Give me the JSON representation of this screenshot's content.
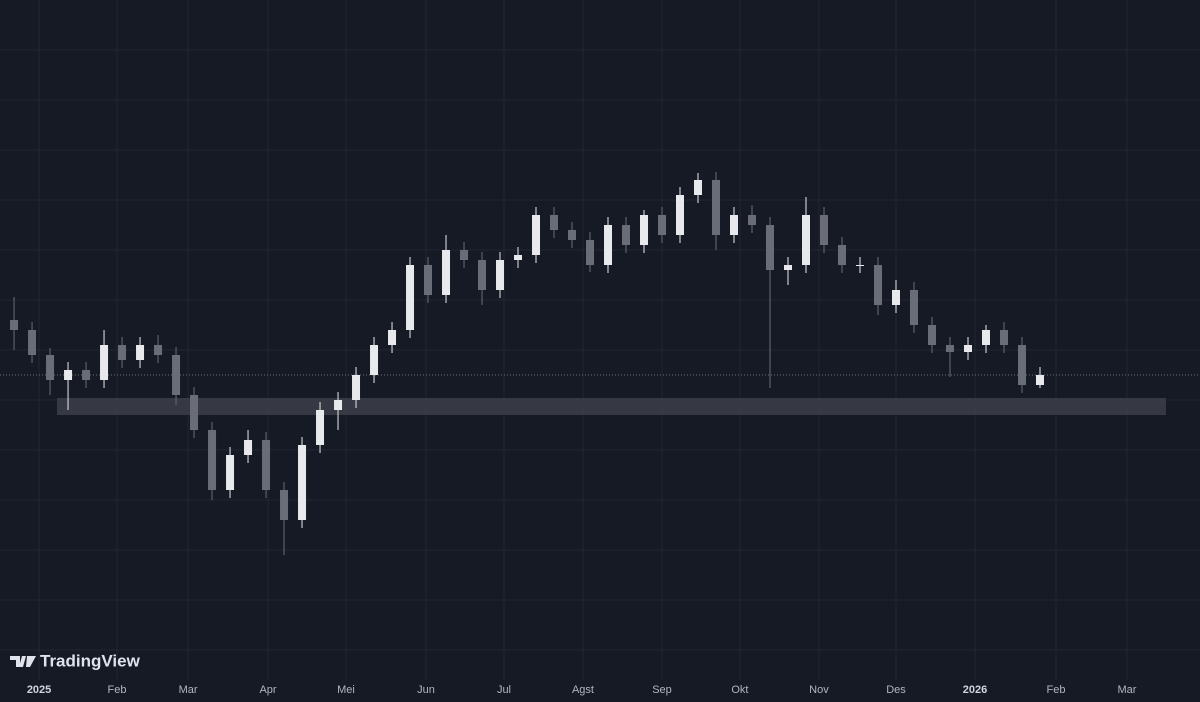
{
  "chart_data": {
    "type": "candlestick",
    "watermark": "TradingView",
    "up_color": "#e8e9ec",
    "down_color": "#6a6d78",
    "zone_color": "#3a3d47",
    "categories": [
      null,
      null,
      null,
      null,
      null,
      null,
      null,
      null,
      null,
      null,
      null,
      null,
      null,
      null,
      null,
      null,
      null,
      null,
      null,
      null,
      null,
      null,
      null,
      null,
      null,
      null,
      null,
      null,
      null,
      null,
      null,
      null,
      null,
      null,
      null,
      null,
      null,
      null,
      null,
      null,
      null,
      null,
      null,
      null,
      null,
      null,
      null,
      null,
      null,
      null,
      null,
      null,
      null,
      null,
      null,
      null,
      null,
      null
    ],
    "open": [
      380,
      370,
      345,
      320,
      330,
      320,
      355,
      340,
      355,
      345,
      305,
      270,
      210,
      245,
      260,
      210,
      180,
      255,
      290,
      300,
      325,
      355,
      370,
      435,
      405,
      450,
      440,
      410,
      440,
      445,
      485,
      470,
      460,
      435,
      475,
      455,
      485,
      465,
      505,
      520,
      465,
      485,
      475,
      430,
      435,
      485,
      455,
      435,
      435,
      395,
      410,
      375,
      355,
      348,
      355,
      370,
      355,
      315
    ],
    "high": [
      403,
      378,
      352,
      338,
      338,
      370,
      363,
      363,
      365,
      353,
      313,
      278,
      253,
      270,
      268,
      218,
      263,
      298,
      308,
      333,
      363,
      378,
      443,
      443,
      465,
      458,
      448,
      448,
      453,
      493,
      493,
      478,
      468,
      483,
      483,
      490,
      493,
      513,
      527,
      528,
      493,
      495,
      483,
      443,
      503,
      493,
      463,
      443,
      443,
      420,
      418,
      383,
      363,
      363,
      375,
      378,
      363,
      333
    ],
    "low": [
      350,
      337,
      305,
      290,
      312,
      312,
      332,
      332,
      337,
      295,
      262,
      200,
      202,
      237,
      202,
      145,
      172,
      247,
      270,
      292,
      317,
      347,
      362,
      397,
      397,
      432,
      395,
      402,
      432,
      437,
      462,
      452,
      428,
      427,
      447,
      447,
      457,
      457,
      497,
      450,
      457,
      467,
      312,
      415,
      427,
      447,
      427,
      427,
      385,
      387,
      367,
      347,
      323,
      340,
      347,
      347,
      307,
      312
    ],
    "close": [
      370,
      345,
      320,
      330,
      320,
      355,
      340,
      355,
      345,
      305,
      270,
      210,
      245,
      260,
      210,
      180,
      255,
      290,
      300,
      325,
      355,
      370,
      435,
      405,
      450,
      440,
      410,
      440,
      445,
      485,
      470,
      460,
      435,
      475,
      455,
      485,
      465,
      505,
      520,
      465,
      485,
      475,
      430,
      435,
      485,
      455,
      435,
      435,
      395,
      410,
      375,
      355,
      348,
      355,
      370,
      355,
      315,
      325
    ],
    "zone": {
      "from": 285,
      "to": 302
    },
    "xlim": [
      -0.78,
      65.89
    ],
    "ylim": [
      20,
      700
    ],
    "yticks": [
      50,
      100,
      150,
      200,
      250,
      300,
      350,
      400,
      450,
      500,
      550,
      600,
      650
    ],
    "xticks": [
      {
        "value": 1.39,
        "label": "2025"
      },
      {
        "value": 5.72,
        "label": "Feb"
      },
      {
        "value": 9.67,
        "label": "Mar"
      },
      {
        "value": 14.11,
        "label": "Apr"
      },
      {
        "value": 18.44,
        "label": "Mei"
      },
      {
        "value": 22.89,
        "label": "Jun"
      },
      {
        "value": 27.22,
        "label": "Jul"
      },
      {
        "value": 31.61,
        "label": "Agst"
      },
      {
        "value": 36,
        "label": "Sep"
      },
      {
        "value": 40.33,
        "label": "Okt"
      },
      {
        "value": 44.72,
        "label": "Nov"
      },
      {
        "value": 49,
        "label": "Des"
      },
      {
        "value": 53.39,
        "label": "2026"
      },
      {
        "value": 57.89,
        "label": "Feb"
      },
      {
        "value": 61.83,
        "label": "Mar"
      }
    ],
    "grid": true
  }
}
